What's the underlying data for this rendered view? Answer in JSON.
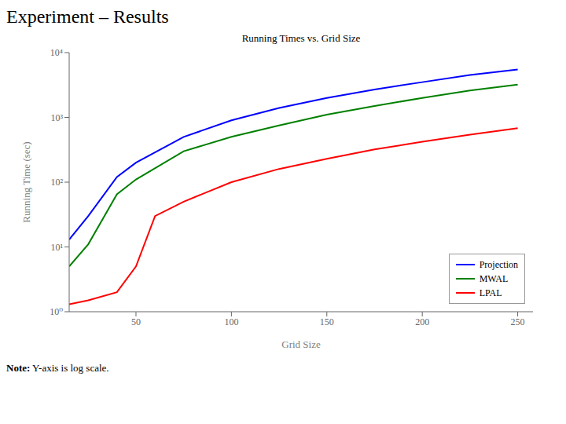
{
  "chart_data": {
    "type": "line",
    "title": "Experiment – Results",
    "subtitle": "Running Times vs. Grid Size",
    "x_label": "Grid Size",
    "y_label": "Running Time (sec)",
    "annotations": [
      "Note:",
      "Y-axis is log scale."
    ],
    "series": [
      {
        "name": "Projection",
        "color": "#0000FF",
        "x": [
          15,
          25,
          40,
          50,
          75,
          100,
          125,
          150,
          175,
          200,
          225,
          250
        ],
        "values": [
          13,
          30,
          120,
          200,
          500,
          900,
          1400,
          2000,
          2700,
          3500,
          4500,
          5500
        ]
      },
      {
        "name": "MWAL",
        "color": "#008000",
        "x": [
          15,
          25,
          40,
          50,
          75,
          100,
          125,
          150,
          175,
          200,
          225,
          250
        ],
        "values": [
          5,
          11,
          65,
          110,
          300,
          500,
          750,
          1100,
          1500,
          2000,
          2600,
          3200
        ]
      },
      {
        "name": "LPAL",
        "color": "#FF0000",
        "x": [
          15,
          25,
          40,
          50,
          60,
          75,
          100,
          125,
          150,
          175,
          200,
          225,
          250
        ],
        "values": [
          1.3,
          1.5,
          2.0,
          5.0,
          30,
          50,
          100,
          160,
          230,
          320,
          420,
          540,
          680
        ]
      }
    ],
    "xlim": [
      15,
      258
    ],
    "xticks": [
      50,
      100,
      150,
      200,
      250
    ],
    "ylim": [
      1,
      10000
    ],
    "yticks": [
      {
        "value": 1,
        "label": "10⁰"
      },
      {
        "value": 10,
        "label": "10¹"
      },
      {
        "value": 100,
        "label": "10²"
      },
      {
        "value": 1000,
        "label": "10³"
      },
      {
        "value": 10000,
        "label": "10⁴"
      }
    ],
    "log": "y",
    "grid": false,
    "legend": "lower right"
  }
}
